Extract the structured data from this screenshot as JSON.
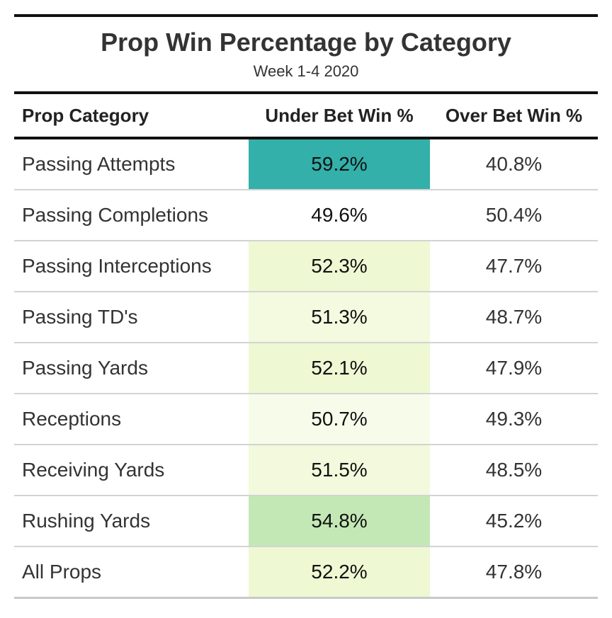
{
  "title": "Prop Win Percentage by Category",
  "subtitle": "Week 1-4 2020",
  "columns": [
    "Prop Category",
    "Under Bet Win %",
    "Over Bet Win %"
  ],
  "rows": [
    {
      "category": "Passing Attempts",
      "under": "59.2%",
      "over": "40.8%",
      "under_color": "#33b0aa"
    },
    {
      "category": "Passing Completions",
      "under": "49.6%",
      "over": "50.4%",
      "under_color": "#ffffff"
    },
    {
      "category": "Passing Interceptions",
      "under": "52.3%",
      "over": "47.7%",
      "under_color": "#eef8d2"
    },
    {
      "category": "Passing TD's",
      "under": "51.3%",
      "over": "48.7%",
      "under_color": "#f3fadf"
    },
    {
      "category": "Passing Yards",
      "under": "52.1%",
      "over": "47.9%",
      "under_color": "#eef8d3"
    },
    {
      "category": "Receptions",
      "under": "50.7%",
      "over": "49.3%",
      "under_color": "#f7fcea"
    },
    {
      "category": "Receiving Yards",
      "under": "51.5%",
      "over": "48.5%",
      "under_color": "#f2f9dc"
    },
    {
      "category": "Rushing Yards",
      "under": "54.8%",
      "over": "45.2%",
      "under_color": "#c3e8b5"
    },
    {
      "category": "All Props",
      "under": "52.2%",
      "over": "47.8%",
      "under_color": "#eef8d3"
    }
  ],
  "chart_data": {
    "type": "table",
    "title": "Prop Win Percentage by Category",
    "subtitle": "Week 1-4 2020",
    "categories": [
      "Passing Attempts",
      "Passing Completions",
      "Passing Interceptions",
      "Passing TD's",
      "Passing Yards",
      "Receptions",
      "Receiving Yards",
      "Rushing Yards",
      "All Props"
    ],
    "series": [
      {
        "name": "Under Bet Win %",
        "values": [
          59.2,
          49.6,
          52.3,
          51.3,
          52.1,
          50.7,
          51.5,
          54.8,
          52.2
        ]
      },
      {
        "name": "Over Bet Win %",
        "values": [
          40.8,
          50.4,
          47.7,
          48.7,
          47.9,
          49.3,
          48.5,
          45.2,
          47.8
        ]
      }
    ]
  }
}
